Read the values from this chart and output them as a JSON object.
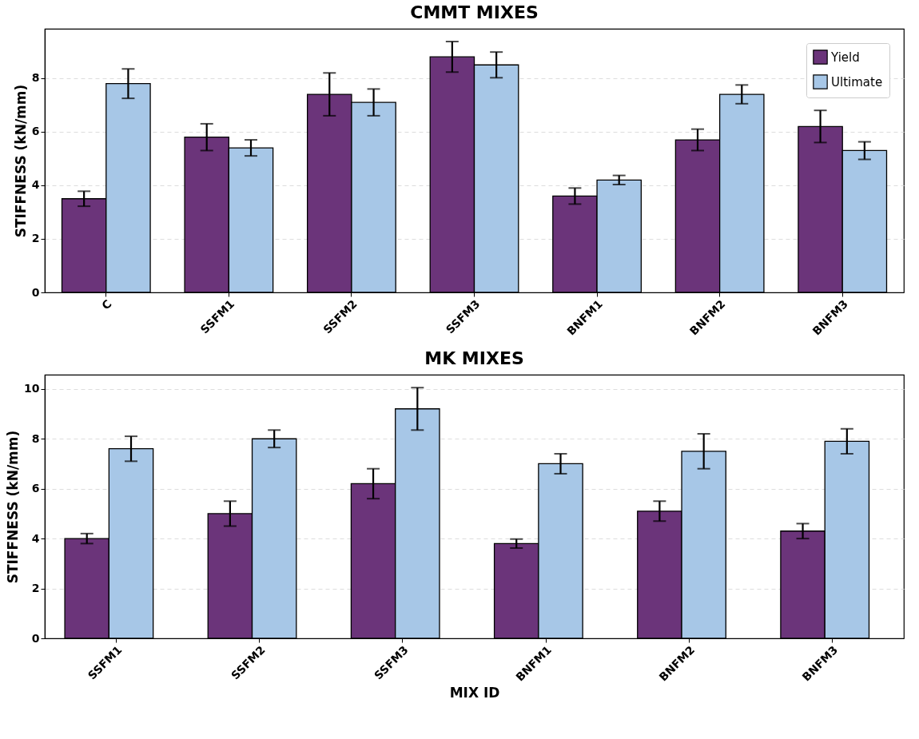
{
  "chart_data": [
    {
      "type": "bar",
      "title": "CMMT MIXES",
      "ylabel": "STIFFNESS (kN/mm)",
      "categories": [
        "C",
        "SSFM1",
        "SSFM2",
        "SSFM3",
        "BNFM1",
        "BNFM2",
        "BNFM3"
      ],
      "ylim": [
        0,
        9.85
      ],
      "yticks": [
        0,
        2,
        4,
        6,
        8
      ],
      "grid": "y",
      "legend": "top right",
      "series": [
        {
          "name": "Yield",
          "color": "#6b347a",
          "values": [
            3.5,
            5.8,
            7.4,
            8.8,
            3.6,
            5.7,
            6.2
          ],
          "errors": [
            0.28,
            0.5,
            0.8,
            0.57,
            0.3,
            0.4,
            0.6
          ]
        },
        {
          "name": "Ultimate",
          "color": "#a7c7e7",
          "values": [
            7.8,
            5.4,
            7.1,
            8.5,
            4.2,
            7.4,
            5.3
          ],
          "errors": [
            0.55,
            0.3,
            0.5,
            0.48,
            0.17,
            0.35,
            0.33
          ]
        }
      ]
    },
    {
      "type": "bar",
      "title": "MK MIXES",
      "xlabel": "MIX ID",
      "ylabel": "STIFFNESS (kN/mm)",
      "categories": [
        "SSFM1",
        "SSFM2",
        "SSFM3",
        "BNFM1",
        "BNFM2",
        "BNFM3"
      ],
      "ylim": [
        0,
        10.57
      ],
      "yticks": [
        0,
        2,
        4,
        6,
        8,
        10
      ],
      "grid": "y",
      "legend": "top right",
      "series": [
        {
          "name": "Yield",
          "color": "#6b347a",
          "values": [
            4.0,
            5.0,
            6.2,
            3.8,
            5.1,
            4.3
          ],
          "errors": [
            0.2,
            0.5,
            0.6,
            0.18,
            0.4,
            0.3
          ]
        },
        {
          "name": "Ultimate",
          "color": "#a7c7e7",
          "values": [
            7.6,
            8.0,
            9.2,
            7.0,
            7.5,
            7.9
          ],
          "errors": [
            0.5,
            0.35,
            0.85,
            0.4,
            0.7,
            0.5
          ]
        }
      ]
    }
  ]
}
